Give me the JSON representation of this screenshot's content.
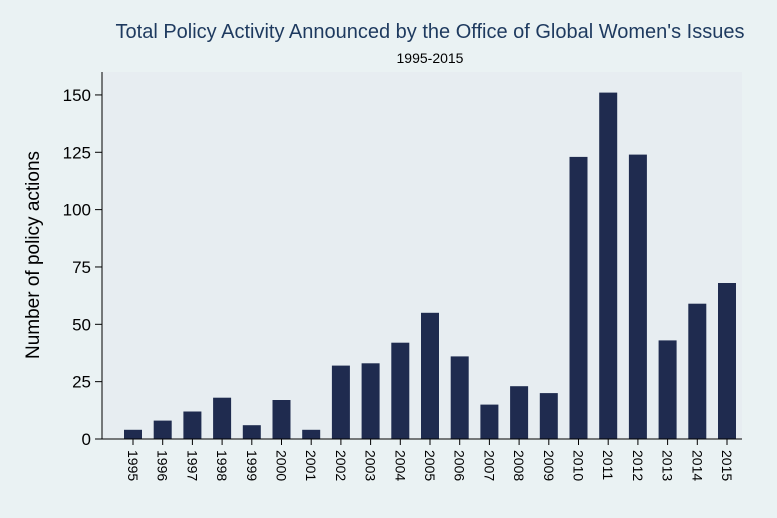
{
  "chart_data": {
    "type": "bar",
    "title": "Total Policy Activity Announced by the Office of Global Women's Issues",
    "subtitle": "1995-2015",
    "xlabel": "",
    "ylabel": "Number of policy actions",
    "categories": [
      "1995",
      "1996",
      "1997",
      "1998",
      "1999",
      "2000",
      "2001",
      "2002",
      "2003",
      "2004",
      "2005",
      "2006",
      "2007",
      "2008",
      "2009",
      "2010",
      "2011",
      "2012",
      "2013",
      "2014",
      "2015"
    ],
    "values": [
      4,
      8,
      12,
      18,
      6,
      17,
      4,
      32,
      33,
      42,
      55,
      36,
      15,
      23,
      20,
      123,
      151,
      124,
      43,
      59,
      68
    ],
    "ylim": [
      0,
      160
    ],
    "yticks": [
      0,
      25,
      50,
      75,
      100,
      125,
      150
    ],
    "grid": false,
    "colors": {
      "bar": "#1f2b4f",
      "plot_background": "#e7edf1",
      "page_background": "#eaf2f3",
      "title": "#1e3a5f"
    }
  }
}
